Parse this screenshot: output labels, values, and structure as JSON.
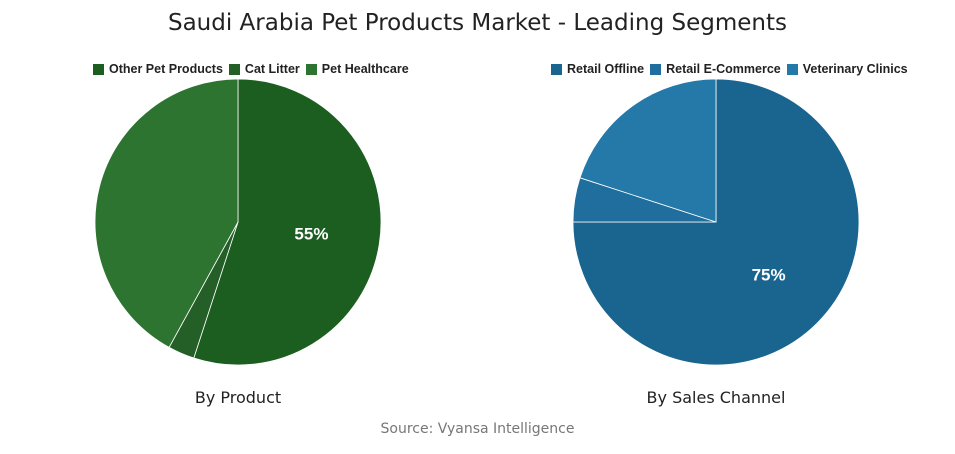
{
  "title": "Saudi Arabia Pet Products Market - Leading Segments",
  "source": "Source: Vyansa Intelligence",
  "chart_data": [
    {
      "type": "pie",
      "title": "By Product",
      "labels": [
        "Other Pet Products",
        "Cat Litter",
        "Pet Healthcare"
      ],
      "values": [
        55,
        3,
        42
      ],
      "colors": [
        "#1b5e20",
        "#255f28",
        "#2e7431"
      ],
      "data_labels": [
        "55%",
        "",
        ""
      ]
    },
    {
      "type": "pie",
      "title": "By Sales Channel",
      "labels": [
        "Retail Offline",
        "Retail E-Commerce",
        "Veterinary Clinics"
      ],
      "values": [
        75,
        5,
        20
      ],
      "colors": [
        "#1a6490",
        "#1f6e9e",
        "#2479a8"
      ],
      "data_labels": [
        "75%",
        "",
        ""
      ]
    }
  ]
}
